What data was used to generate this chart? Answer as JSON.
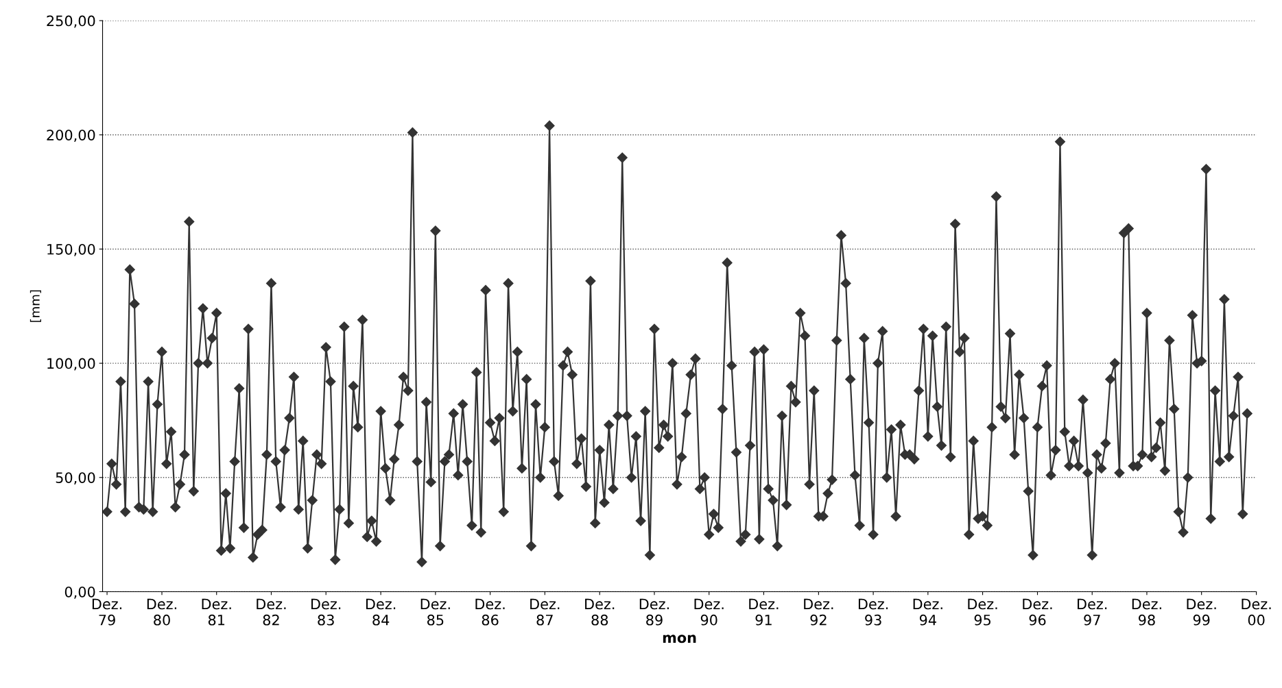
{
  "chart_data": {
    "type": "line",
    "xlabel": "mon",
    "ylabel": "[mm]",
    "x": [
      "1979-12",
      "1980-01",
      "1980-02",
      "1980-03",
      "1980-04",
      "1980-05",
      "1980-06",
      "1980-07",
      "1980-08",
      "1980-09",
      "1980-10",
      "1980-11",
      "1980-12",
      "1981-01",
      "1981-02",
      "1981-03",
      "1981-04",
      "1981-05",
      "1981-06",
      "1981-07",
      "1981-08",
      "1981-09",
      "1981-10",
      "1981-11",
      "1981-12",
      "1982-01",
      "1982-02",
      "1982-03",
      "1982-04",
      "1982-05",
      "1982-06",
      "1982-07",
      "1982-08",
      "1982-09",
      "1982-10",
      "1982-11",
      "1982-12",
      "1983-01",
      "1983-02",
      "1983-03",
      "1983-04",
      "1983-05",
      "1983-06",
      "1983-07",
      "1983-08",
      "1983-09",
      "1983-10",
      "1983-11",
      "1983-12",
      "1984-01",
      "1984-02",
      "1984-03",
      "1984-04",
      "1984-05",
      "1984-06",
      "1984-07",
      "1984-08",
      "1984-09",
      "1984-10",
      "1984-11",
      "1984-12",
      "1985-01",
      "1985-02",
      "1985-03",
      "1985-04",
      "1985-05",
      "1985-06",
      "1985-07",
      "1985-08",
      "1985-09",
      "1985-10",
      "1985-11",
      "1985-12",
      "1986-01",
      "1986-02",
      "1986-03",
      "1986-04",
      "1986-05",
      "1986-06",
      "1986-07",
      "1986-08",
      "1986-09",
      "1986-10",
      "1986-11",
      "1986-12",
      "1987-01",
      "1987-02",
      "1987-03",
      "1987-04",
      "1987-05",
      "1987-06",
      "1987-07",
      "1987-08",
      "1987-09",
      "1987-10",
      "1987-11",
      "1987-12",
      "1988-01",
      "1988-02",
      "1988-03",
      "1988-04",
      "1988-05",
      "1988-06",
      "1988-07",
      "1988-08",
      "1988-09",
      "1988-10",
      "1988-11",
      "1988-12",
      "1989-01",
      "1989-02",
      "1989-03",
      "1989-04",
      "1989-05",
      "1989-06",
      "1989-07",
      "1989-08",
      "1989-09",
      "1989-10",
      "1989-11",
      "1989-12",
      "1990-01",
      "1990-02",
      "1990-03",
      "1990-04",
      "1990-05",
      "1990-06",
      "1990-07",
      "1990-08",
      "1990-09",
      "1990-10",
      "1990-11",
      "1990-12",
      "1991-01",
      "1991-02",
      "1991-03",
      "1991-04",
      "1991-05",
      "1991-06",
      "1991-07",
      "1991-08",
      "1991-09",
      "1991-10",
      "1991-11",
      "1991-12",
      "1992-01",
      "1992-02",
      "1992-03",
      "1992-04",
      "1992-05",
      "1992-06",
      "1992-07",
      "1992-08",
      "1992-09",
      "1992-10",
      "1992-11",
      "1992-12",
      "1993-01",
      "1993-02",
      "1993-03",
      "1993-04",
      "1993-05",
      "1993-06",
      "1993-07",
      "1993-08",
      "1993-09",
      "1993-10",
      "1993-11",
      "1993-12",
      "1994-01",
      "1994-02",
      "1994-03",
      "1994-04",
      "1994-05",
      "1994-06",
      "1994-07",
      "1994-08",
      "1994-09",
      "1994-10",
      "1994-11",
      "1994-12",
      "1995-01",
      "1995-02",
      "1995-03",
      "1995-04",
      "1995-05",
      "1995-06",
      "1995-07",
      "1995-08",
      "1995-09",
      "1995-10",
      "1995-11",
      "1995-12",
      "1996-01",
      "1996-02",
      "1996-03",
      "1996-04",
      "1996-05",
      "1996-06",
      "1996-07",
      "1996-08",
      "1996-09",
      "1996-10",
      "1996-11",
      "1996-12",
      "1997-01",
      "1997-02",
      "1997-03",
      "1997-04",
      "1997-05",
      "1997-06",
      "1997-07",
      "1997-08",
      "1997-09",
      "1997-10",
      "1997-11",
      "1997-12",
      "1998-01",
      "1998-02",
      "1998-03",
      "1998-04",
      "1998-05",
      "1998-06",
      "1998-07",
      "1998-08",
      "1998-09",
      "1998-10",
      "1998-11",
      "1998-12",
      "1999-01",
      "1999-02",
      "1999-03",
      "1999-04",
      "1999-05",
      "1999-06",
      "1999-07",
      "1999-08",
      "1999-09",
      "1999-10",
      "1999-11",
      "1999-12",
      "2000-01",
      "2000-02",
      "2000-03",
      "2000-04",
      "2000-05",
      "2000-06",
      "2000-07",
      "2000-08",
      "2000-09",
      "2000-10"
    ],
    "series": [
      {
        "color": "#333333",
        "values": [
          35,
          56,
          47,
          92,
          35,
          141,
          126,
          37,
          36,
          92,
          35,
          82,
          105,
          56,
          70,
          37,
          47,
          60,
          162,
          44,
          100,
          124,
          100,
          111,
          122,
          18,
          43,
          19,
          57,
          89,
          28,
          115,
          15,
          25,
          27,
          60,
          135,
          57,
          37,
          62,
          76,
          94,
          36,
          66,
          19,
          40,
          60,
          56,
          107,
          92,
          14,
          36,
          116,
          30,
          90,
          72,
          119,
          24,
          31,
          22,
          79,
          54,
          40,
          58,
          73,
          94,
          88,
          201,
          57,
          13,
          83,
          48,
          158,
          20,
          57,
          60,
          78,
          51,
          82,
          57,
          29,
          96,
          26,
          132,
          74,
          66,
          76,
          35,
          135,
          79,
          105,
          54,
          93,
          20,
          82,
          50,
          72,
          204,
          57,
          42,
          99,
          105,
          95,
          56,
          67,
          46,
          136,
          30,
          62,
          39,
          73,
          45,
          77,
          190,
          77,
          50,
          68,
          31,
          79,
          16,
          115,
          63,
          73,
          68,
          100,
          47,
          59,
          78,
          95,
          102,
          45,
          50,
          25,
          34,
          28,
          80,
          144,
          99,
          61,
          22,
          25,
          64,
          105,
          23,
          106,
          45,
          40,
          20,
          77,
          38,
          90,
          83,
          122,
          112,
          47,
          88,
          33,
          33,
          43,
          49,
          110,
          156,
          135,
          93,
          51,
          29,
          111,
          74,
          25,
          100,
          114,
          50,
          71,
          33,
          73,
          60,
          60,
          58,
          88,
          115,
          68,
          112,
          81,
          64,
          116,
          59,
          161,
          105,
          111,
          25,
          66,
          32,
          33,
          29,
          72,
          173,
          81,
          76,
          113,
          60,
          95,
          76,
          44,
          16,
          72,
          90,
          99,
          51,
          62,
          197,
          70,
          55,
          66,
          55,
          84,
          52,
          16,
          60,
          54,
          65,
          93,
          100,
          52,
          157,
          159,
          55,
          55,
          60,
          122,
          59,
          63,
          74,
          53,
          110,
          80,
          35,
          26,
          50,
          121,
          100,
          101,
          185,
          32,
          88,
          57,
          128,
          59,
          77,
          94,
          34,
          78
        ]
      }
    ],
    "xlim": [
      "1979-11",
      "2000-12"
    ],
    "xticks": [
      {
        "value": "1979-12",
        "label": "Dez.\n79"
      },
      {
        "value": "1980-12",
        "label": "Dez.\n80"
      },
      {
        "value": "1981-12",
        "label": "Dez.\n81"
      },
      {
        "value": "1982-12",
        "label": "Dez.\n82"
      },
      {
        "value": "1983-12",
        "label": "Dez.\n83"
      },
      {
        "value": "1984-12",
        "label": "Dez.\n84"
      },
      {
        "value": "1985-12",
        "label": "Dez.\n85"
      },
      {
        "value": "1986-12",
        "label": "Dez.\n86"
      },
      {
        "value": "1987-12",
        "label": "Dez.\n87"
      },
      {
        "value": "1988-12",
        "label": "Dez.\n88"
      },
      {
        "value": "1989-12",
        "label": "Dez.\n89"
      },
      {
        "value": "1990-12",
        "label": "Dez.\n90"
      },
      {
        "value": "1991-12",
        "label": "Dez.\n91"
      },
      {
        "value": "1992-12",
        "label": "Dez.\n92"
      },
      {
        "value": "1993-12",
        "label": "Dez.\n93"
      },
      {
        "value": "1994-12",
        "label": "Dez.\n94"
      },
      {
        "value": "1995-12",
        "label": "Dez.\n95"
      },
      {
        "value": "1996-12",
        "label": "Dez.\n96"
      },
      {
        "value": "1997-12",
        "label": "Dez.\n97"
      },
      {
        "value": "1998-12",
        "label": "Dez.\n98"
      },
      {
        "value": "1999-12",
        "label": "Dez.\n99"
      },
      {
        "value": "2000-12",
        "label": "Dez.\n00"
      }
    ],
    "ylim": [
      0,
      250
    ],
    "yticks": [
      {
        "value": 0,
        "label": "0,00"
      },
      {
        "value": 50,
        "label": "50,00"
      },
      {
        "value": 100,
        "label": "100,00"
      },
      {
        "value": 150,
        "label": "150,00"
      },
      {
        "value": 200,
        "label": "200,00"
      },
      {
        "value": 250,
        "label": "250,00"
      }
    ],
    "grid": "y",
    "marker": "diamond",
    "line_style": "solid",
    "legend": false
  }
}
